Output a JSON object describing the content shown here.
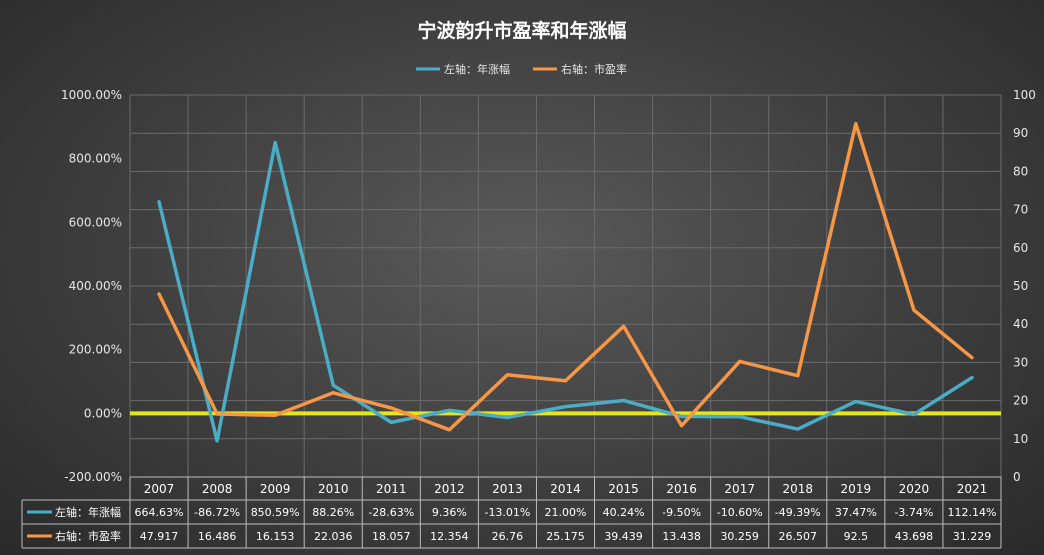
{
  "chart_data": {
    "type": "line",
    "title": "宁波韵升市盈率和年涨幅",
    "categories": [
      "2007",
      "2008",
      "2009",
      "2010",
      "2011",
      "2012",
      "2013",
      "2014",
      "2015",
      "2016",
      "2017",
      "2018",
      "2019",
      "2020",
      "2021"
    ],
    "left_axis": {
      "ylim": [
        -200,
        1000
      ],
      "ticks": [
        "-200.00%",
        "0.00%",
        "200.00%",
        "400.00%",
        "600.00%",
        "800.00%",
        "1000.00%"
      ],
      "tick_values": [
        -200,
        0,
        200,
        400,
        600,
        800,
        1000
      ]
    },
    "right_axis": {
      "ylim": [
        0,
        100
      ],
      "ticks": [
        "0",
        "10",
        "20",
        "30",
        "40",
        "50",
        "60",
        "70",
        "80",
        "90",
        "100"
      ],
      "tick_values": [
        0,
        10,
        20,
        30,
        40,
        50,
        60,
        70,
        80,
        90,
        100
      ]
    },
    "zero_line_color": "#e6e619",
    "legend_position": "top-center",
    "series": [
      {
        "name": "左轴：年涨幅",
        "axis": "left",
        "color": "#4bacc6",
        "values": [
          664.63,
          -86.72,
          850.59,
          88.26,
          -28.63,
          9.36,
          -13.01,
          21.0,
          40.24,
          -9.5,
          -10.6,
          -49.39,
          37.47,
          -3.74,
          112.14
        ],
        "labels": [
          "664.63%",
          "-86.72%",
          "850.59%",
          "88.26%",
          "-28.63%",
          "9.36%",
          "-13.01%",
          "21.00%",
          "40.24%",
          "-9.50%",
          "-10.60%",
          "-49.39%",
          "37.47%",
          "-3.74%",
          "112.14%"
        ]
      },
      {
        "name": "右轴：市盈率",
        "axis": "right",
        "color": "#f79646",
        "values": [
          47.917,
          16.486,
          16.153,
          22.036,
          18.057,
          12.354,
          26.76,
          25.175,
          39.439,
          13.438,
          30.259,
          26.507,
          92.5,
          43.698,
          31.229
        ],
        "labels": [
          "47.917",
          "16.486",
          "16.153",
          "22.036",
          "18.057",
          "12.354",
          "26.76",
          "25.175",
          "39.439",
          "13.438",
          "30.259",
          "26.507",
          "92.5",
          "43.698",
          "31.229"
        ]
      }
    ]
  }
}
